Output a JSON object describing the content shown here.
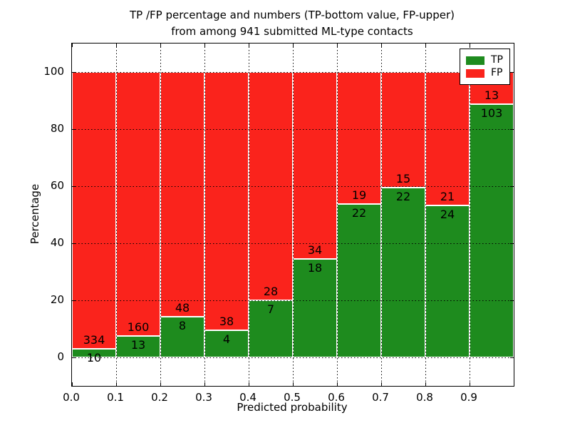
{
  "title": {
    "line1": "TP /FP percentage and numbers (TP-bottom value, FP-upper)",
    "line2": "from among 941 submitted ML-type contacts"
  },
  "axes": {
    "xlabel": "Predicted probability",
    "ylabel": "Percentage"
  },
  "legend": {
    "position": "upper right",
    "entries": [
      {
        "label": "TP",
        "color": "#1e8b1e"
      },
      {
        "label": "FP",
        "color": "#fa231c"
      }
    ]
  },
  "chart_data": {
    "type": "bar",
    "stacked": true,
    "units": "percent of bin total",
    "title": "TP /FP percentage and numbers (TP-bottom value, FP-upper) from among 941 submitted ML-type contacts",
    "xlabel": "Predicted probability",
    "ylabel": "Percentage",
    "total_contacts": 941,
    "bin_width": 0.1,
    "categories": [
      "0.0-0.1",
      "0.1-0.2",
      "0.2-0.3",
      "0.3-0.4",
      "0.4-0.5",
      "0.5-0.6",
      "0.6-0.7",
      "0.7-0.8",
      "0.8-0.9",
      "0.9-1.0"
    ],
    "series": [
      {
        "name": "TP",
        "color": "#1e8b1e",
        "counts": [
          10,
          13,
          8,
          4,
          7,
          18,
          22,
          22,
          24,
          103
        ],
        "percent": [
          2.9,
          7.5,
          14.3,
          9.5,
          20.0,
          34.6,
          53.7,
          59.5,
          53.3,
          88.8
        ]
      },
      {
        "name": "FP",
        "color": "#fa231c",
        "counts": [
          334,
          160,
          48,
          38,
          28,
          34,
          19,
          15,
          21,
          13
        ],
        "percent": [
          97.1,
          92.5,
          85.7,
          90.5,
          80.0,
          65.4,
          46.3,
          40.5,
          46.7,
          11.2
        ]
      }
    ],
    "xlim": [
      0.0,
      1.0
    ],
    "ylim": [
      -10,
      110
    ],
    "xticks": [
      "0.0",
      "0.1",
      "0.2",
      "0.3",
      "0.4",
      "0.5",
      "0.6",
      "0.7",
      "0.8",
      "0.9"
    ],
    "yticks": [
      0,
      20,
      40,
      60,
      80,
      100
    ],
    "grid": {
      "style": "dotted",
      "color": "#000000"
    },
    "legend_position": "upper right"
  }
}
